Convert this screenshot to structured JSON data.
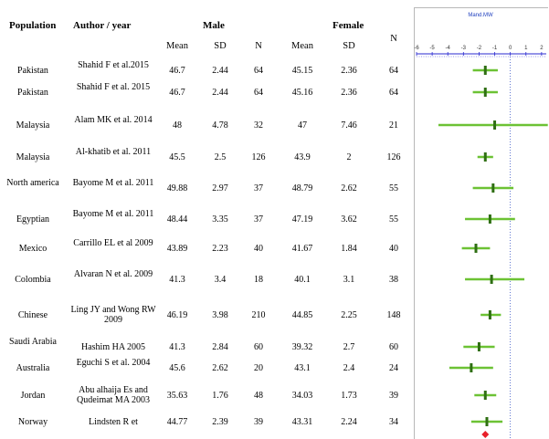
{
  "headers": {
    "population": "Population",
    "author_year": "Author  / year",
    "male": "Male",
    "female": "Female",
    "n": "N",
    "mean": "Mean",
    "sd": "SD"
  },
  "rows": [
    {
      "population": "Pakistan",
      "author": "Shahid F et al.2015",
      "male_mean": "46.7",
      "male_sd": "2.44",
      "male_n": "64",
      "female_mean": "45.15",
      "female_sd": "2.36",
      "female_n": "64"
    },
    {
      "population": "Pakistan",
      "author": "Shahid F et al. 2015",
      "male_mean": "46.7",
      "male_sd": "2.44",
      "male_n": "64",
      "female_mean": "45.16",
      "female_sd": "2.36",
      "female_n": "64"
    },
    {
      "population": "Malaysia",
      "author": "Alam MK et al. 2014",
      "male_mean": "48",
      "male_sd": "4.78",
      "male_n": "32",
      "female_mean": "47",
      "female_sd": "7.46",
      "female_n": "21"
    },
    {
      "population": "Malaysia",
      "author": "Al-khatib  et al. 2011",
      "male_mean": "45.5",
      "male_sd": "2.5",
      "male_n": "126",
      "female_mean": "43.9",
      "female_sd": "2",
      "female_n": "126"
    },
    {
      "population": "North america",
      "author": "Bayome M et al. 2011",
      "male_mean": "49.88",
      "male_sd": "2.97",
      "male_n": "37",
      "female_mean": "48.79",
      "female_sd": "2.62",
      "female_n": "55"
    },
    {
      "population": "Egyptian",
      "author": "Bayome M et al. 2011",
      "male_mean": "48.44",
      "male_sd": "3.35",
      "male_n": "37",
      "female_mean": "47.19",
      "female_sd": "3.62",
      "female_n": "55"
    },
    {
      "population": "Mexico",
      "author": "Carrillo  EL et al 2009",
      "male_mean": "43.89",
      "male_sd": "2.23",
      "male_n": "40",
      "female_mean": "41.67",
      "female_sd": "1.84",
      "female_n": "40"
    },
    {
      "population": "Colombia",
      "author": "Alvaran  N et al. 2009",
      "male_mean": "41.3",
      "male_sd": "3.4",
      "male_n": "18",
      "female_mean": "40.1",
      "female_sd": "3.1",
      "female_n": "38"
    },
    {
      "population": "Chinese",
      "author": "Ling JY and Wong RW 2009",
      "male_mean": "46.19",
      "male_sd": "3.98",
      "male_n": "210",
      "female_mean": "44.85",
      "female_sd": "2.25",
      "female_n": "148"
    },
    {
      "population": "Saudi Arabia",
      "author": "Hashim  HA 2005",
      "male_mean": "41.3",
      "male_sd": "2.84",
      "male_n": "60",
      "female_mean": "39.32",
      "female_sd": "2.7",
      "female_n": "60"
    },
    {
      "population": "Australia",
      "author": "Eguchi  S et al. 2004",
      "male_mean": "45.6",
      "male_sd": "2.62",
      "male_n": "20",
      "female_mean": "43.1",
      "female_sd": "2.4",
      "female_n": "24"
    },
    {
      "population": "Jordan",
      "author": "Abu alhaija  Es and Qudeimat MA 2003",
      "male_mean": "35.63",
      "male_sd": "1.76",
      "male_n": "48",
      "female_mean": "34.03",
      "female_sd": "1.73",
      "female_n": "39"
    },
    {
      "population": "Norway",
      "author": "Lindsten  R et",
      "male_mean": "44.77",
      "male_sd": "2.39",
      "male_n": "39",
      "female_mean": "43.31",
      "female_sd": "2.24",
      "female_n": "34"
    }
  ],
  "chart_data": {
    "type": "forest",
    "title": "Mand.MW",
    "xlim": [
      -6,
      2.3
    ],
    "xticks": [
      -6,
      -5,
      -4,
      -3,
      -2,
      -1,
      0,
      1,
      2
    ],
    "tick_labels": [
      "-6",
      "-5",
      "-4",
      "-3",
      "-2",
      "-1",
      "0",
      "1",
      "2"
    ],
    "studies": [
      {
        "estimate": -1.6,
        "lower": -2.4,
        "upper": -0.8
      },
      {
        "estimate": -1.6,
        "lower": -2.4,
        "upper": -0.8
      },
      {
        "estimate": -1.0,
        "lower": -4.6,
        "upper": 2.4
      },
      {
        "estimate": -1.6,
        "lower": -2.1,
        "upper": -1.1
      },
      {
        "estimate": -1.1,
        "lower": -2.4,
        "upper": 0.2
      },
      {
        "estimate": -1.3,
        "lower": -2.9,
        "upper": 0.3
      },
      {
        "estimate": -2.2,
        "lower": -3.1,
        "upper": -1.3
      },
      {
        "estimate": -1.2,
        "lower": -2.9,
        "upper": 0.9
      },
      {
        "estimate": -1.3,
        "lower": -1.9,
        "upper": -0.6
      },
      {
        "estimate": -2.0,
        "lower": -3.0,
        "upper": -1.0
      },
      {
        "estimate": -2.5,
        "lower": -3.9,
        "upper": -1.1
      },
      {
        "estimate": -1.6,
        "lower": -2.3,
        "upper": -0.9
      },
      {
        "estimate": -1.5,
        "lower": -2.5,
        "upper": -0.5
      }
    ],
    "pooled": {
      "estimate": -1.6
    },
    "colors": {
      "ci": "#6cc234",
      "marker": "#2f6f13",
      "pooled": "#e8202a",
      "axis": "#2a2ad0",
      "zero": "#1f3fbf"
    }
  }
}
